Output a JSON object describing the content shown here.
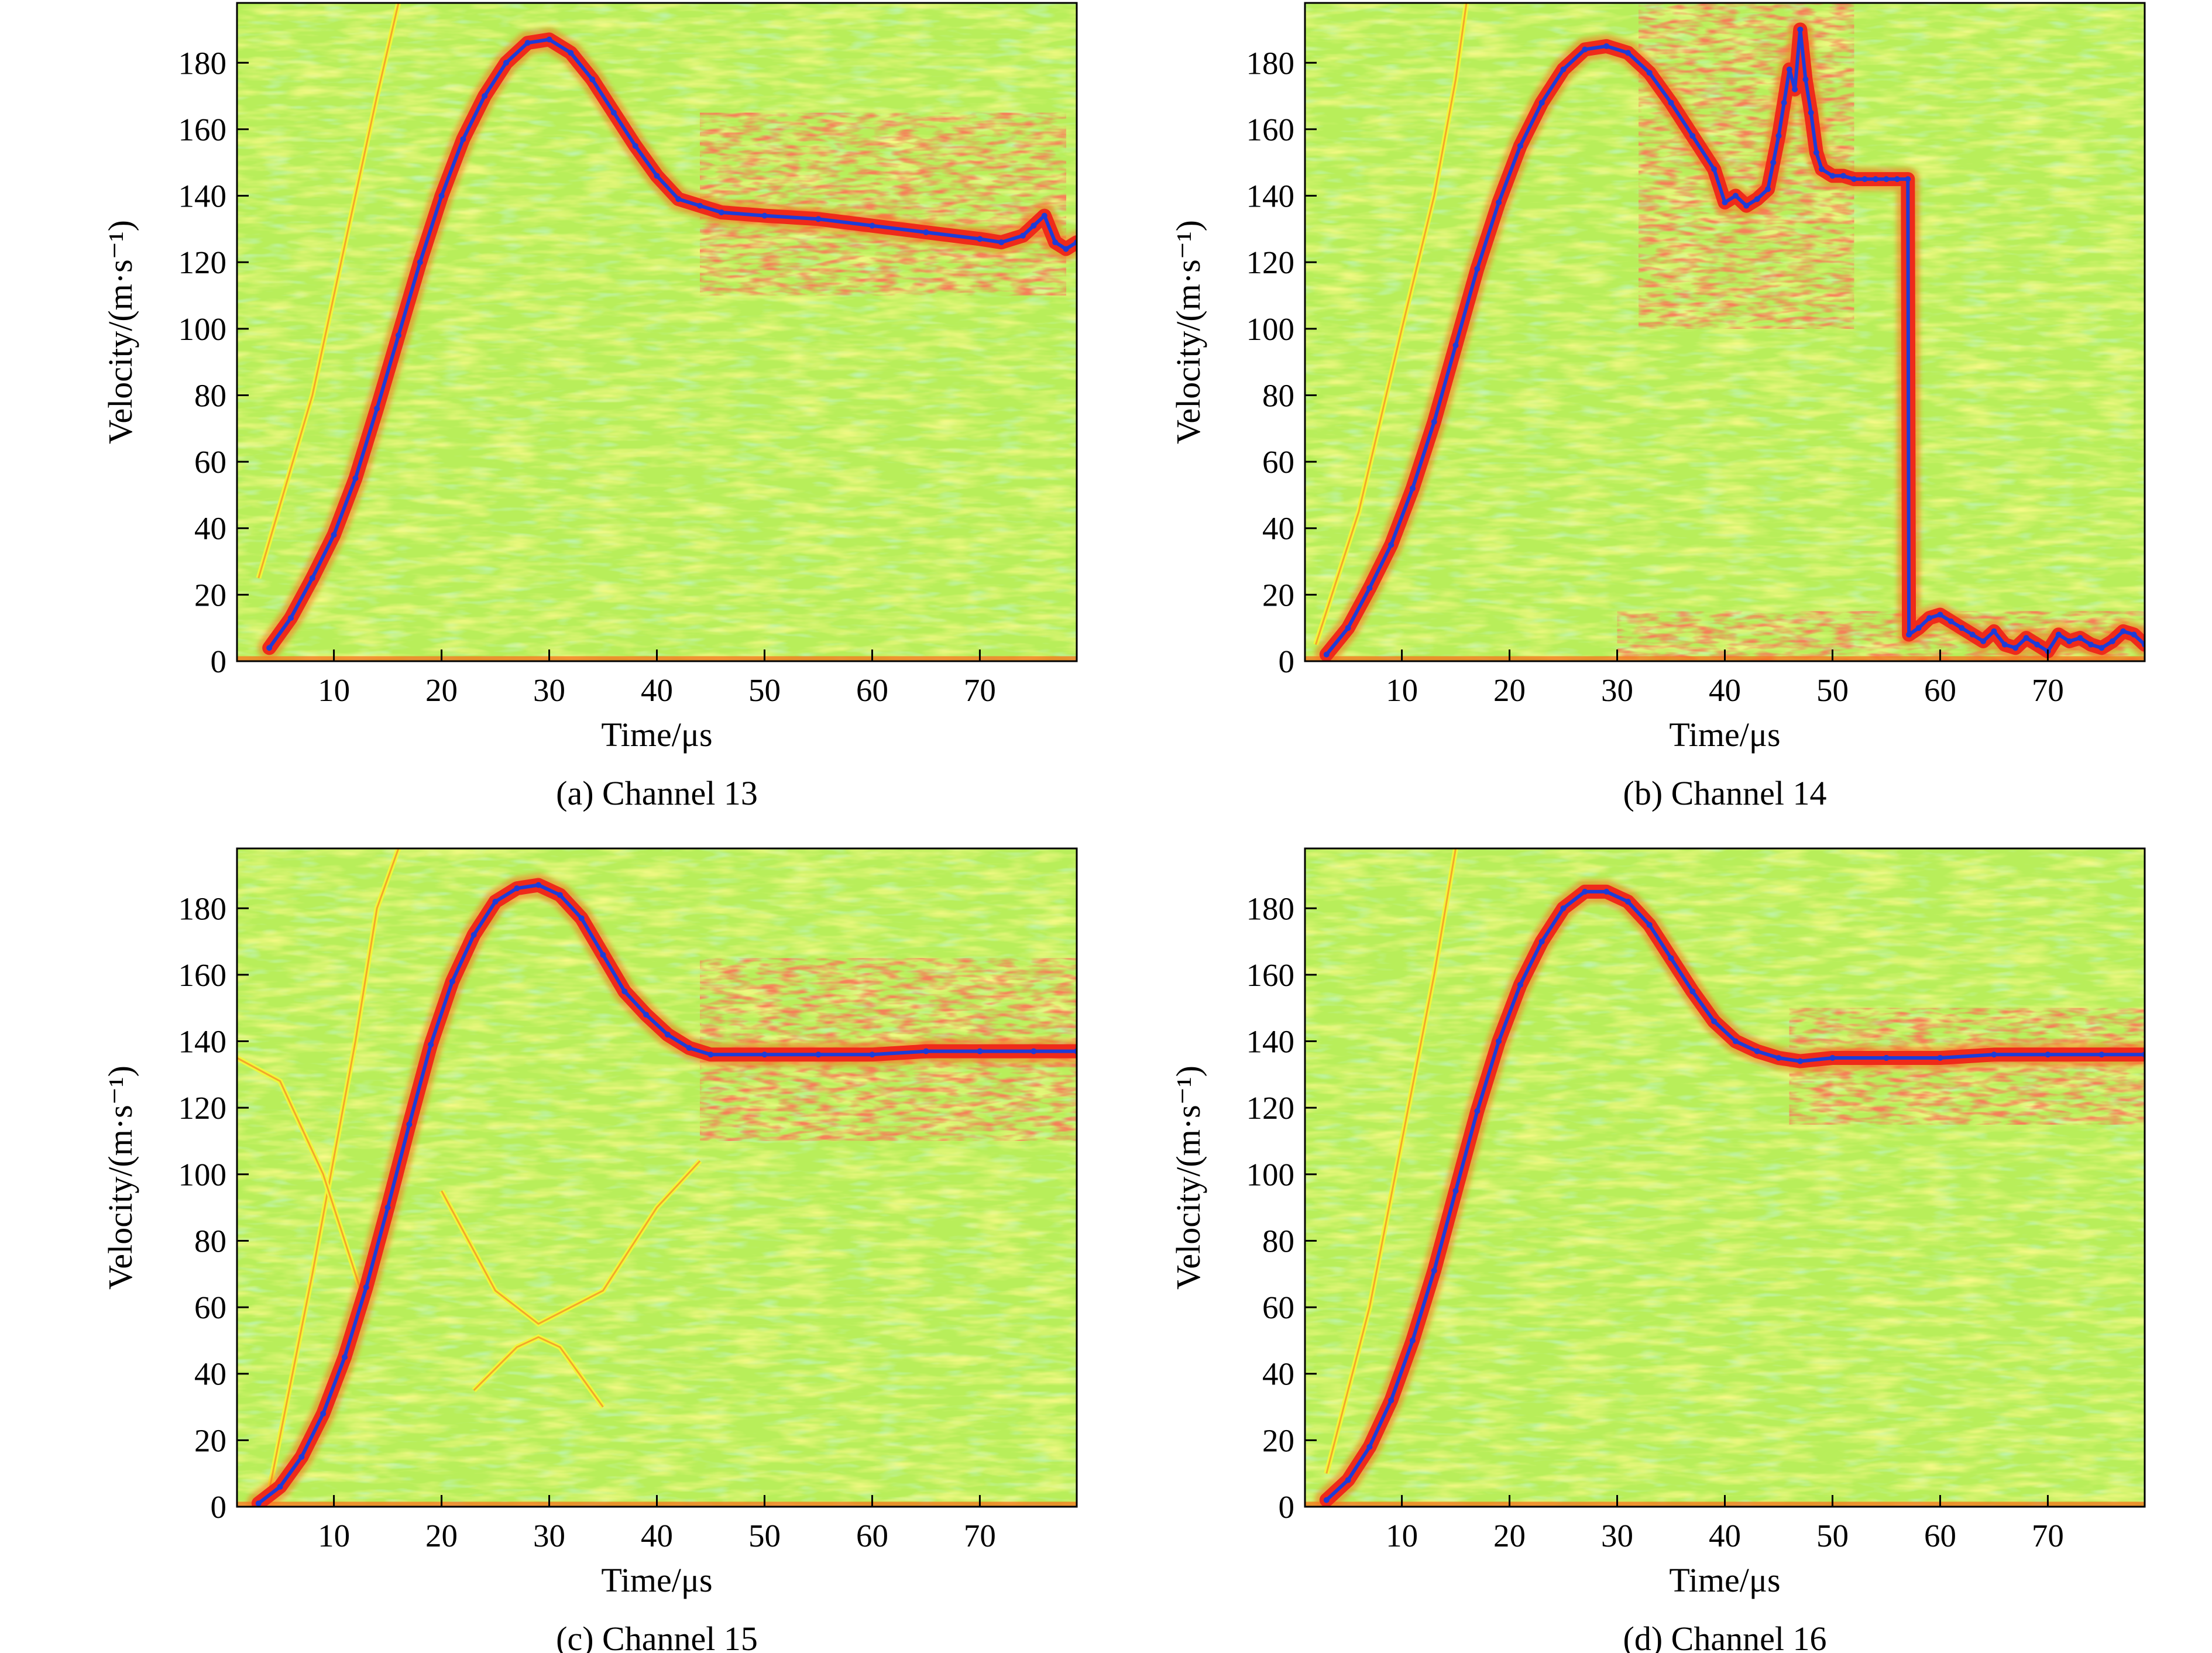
{
  "figure": {
    "colors": {
      "background_green": "#b8ee5a",
      "noise_yellow": "#f2f53a",
      "noise_cyan": "#8ff0b8",
      "signal_red": "#ef2a1a",
      "signal_orange": "#f7741c",
      "trace_blue": "#1d3cd8"
    }
  },
  "chart_data": [
    {
      "type": "heatmap",
      "caption": "(a) Channel 13",
      "xlabel": "Time/μs",
      "ylabel": "Velocity/(m·s⁻¹)",
      "xlim": [
        1,
        79
      ],
      "ylim": [
        0,
        198
      ],
      "xticks": [
        10,
        20,
        30,
        40,
        50,
        60,
        70
      ],
      "yticks": [
        0,
        20,
        40,
        60,
        80,
        100,
        120,
        140,
        160,
        180
      ],
      "extracted_velocity": {
        "t": [
          4,
          6,
          8,
          10,
          12,
          14,
          16,
          18,
          20,
          22,
          24,
          26,
          28,
          30,
          32,
          34,
          36,
          38,
          40,
          42,
          44,
          46,
          50,
          55,
          60,
          65,
          70,
          72,
          74,
          75,
          76,
          77,
          78,
          79
        ],
        "v": [
          4,
          13,
          25,
          38,
          55,
          76,
          98,
          120,
          140,
          157,
          170,
          180,
          186,
          187,
          183,
          175,
          165,
          155,
          146,
          139,
          137,
          135,
          134,
          133,
          131,
          129,
          127,
          126,
          128,
          131,
          134,
          126,
          124,
          126
        ]
      },
      "side_lines": [
        {
          "t": [
            3,
            8,
            12,
            14,
            16
          ],
          "v": [
            25,
            80,
            140,
            170,
            198
          ]
        }
      ],
      "scatter_regions": [
        {
          "t": [
            44,
            78
          ],
          "v": [
            110,
            165
          ]
        }
      ]
    },
    {
      "type": "heatmap",
      "caption": "(b) Channel 14",
      "xlabel": "Time/μs",
      "ylabel": "Velocity/(m·s⁻¹)",
      "xlim": [
        1,
        79
      ],
      "ylim": [
        0,
        198
      ],
      "xticks": [
        10,
        20,
        30,
        40,
        50,
        60,
        70
      ],
      "yticks": [
        0,
        20,
        40,
        60,
        80,
        100,
        120,
        140,
        160,
        180
      ],
      "extracted_velocity": {
        "t": [
          3,
          5,
          7,
          9,
          11,
          13,
          15,
          17,
          19,
          21,
          23,
          25,
          27,
          29,
          31,
          33,
          35,
          37,
          39,
          40,
          41,
          42,
          43,
          44,
          44.5,
          45,
          45.5,
          46,
          46.5,
          47,
          47.5,
          48,
          48.5,
          49,
          50,
          51,
          52,
          53,
          54,
          55,
          56,
          57,
          57.1,
          58,
          59,
          60,
          61,
          62,
          63,
          64,
          65,
          66,
          67,
          68,
          69,
          70,
          71,
          72,
          73,
          74,
          75,
          76,
          77,
          78,
          79
        ],
        "v": [
          2,
          10,
          22,
          35,
          52,
          72,
          95,
          118,
          138,
          155,
          168,
          178,
          184,
          185,
          183,
          177,
          168,
          158,
          148,
          138,
          140,
          137,
          139,
          142,
          150,
          158,
          168,
          178,
          172,
          190,
          175,
          165,
          153,
          148,
          146,
          146,
          145,
          145,
          145,
          145,
          145,
          145,
          8,
          10,
          13,
          14,
          12,
          10,
          8,
          6,
          9,
          5,
          4,
          7,
          5,
          3,
          8,
          6,
          7,
          5,
          4,
          6,
          9,
          8,
          5
        ]
      },
      "side_lines": [
        {
          "t": [
            2,
            6,
            10,
            13,
            15,
            16
          ],
          "v": [
            5,
            45,
            100,
            140,
            175,
            198
          ]
        }
      ],
      "scatter_regions": [
        {
          "t": [
            32,
            52
          ],
          "v": [
            100,
            198
          ]
        },
        {
          "t": [
            30,
            80
          ],
          "v": [
            0,
            15
          ]
        }
      ]
    },
    {
      "type": "heatmap",
      "caption": "(c) Channel 15",
      "xlabel": "Time/μs",
      "ylabel": "Velocity/(m·s⁻¹)",
      "xlim": [
        1,
        79
      ],
      "ylim": [
        0,
        198
      ],
      "xticks": [
        10,
        20,
        30,
        40,
        50,
        60,
        70
      ],
      "yticks": [
        0,
        20,
        40,
        60,
        80,
        100,
        120,
        140,
        160,
        180
      ],
      "extracted_velocity": {
        "t": [
          3,
          5,
          7,
          9,
          11,
          13,
          15,
          17,
          19,
          21,
          23,
          25,
          27,
          29,
          31,
          33,
          35,
          37,
          39,
          41,
          43,
          45,
          50,
          55,
          60,
          65,
          70,
          75,
          79
        ],
        "v": [
          1,
          6,
          15,
          28,
          45,
          66,
          90,
          115,
          139,
          158,
          172,
          182,
          186,
          187,
          184,
          177,
          166,
          155,
          148,
          142,
          138,
          136,
          136,
          136,
          136,
          137,
          137,
          137,
          137
        ]
      },
      "side_lines": [
        {
          "t": [
            4,
            8,
            12,
            14,
            16
          ],
          "v": [
            5,
            70,
            140,
            180,
            198
          ]
        },
        {
          "t": [
            1,
            5,
            9,
            13
          ],
          "v": [
            135,
            128,
            100,
            60
          ]
        },
        {
          "t": [
            20,
            25,
            29,
            35,
            40,
            44
          ],
          "v": [
            95,
            65,
            55,
            65,
            90,
            104
          ]
        },
        {
          "t": [
            23,
            27,
            29,
            31,
            35
          ],
          "v": [
            35,
            48,
            51,
            48,
            30
          ]
        }
      ],
      "scatter_regions": [
        {
          "t": [
            44,
            79
          ],
          "v": [
            110,
            165
          ]
        }
      ]
    },
    {
      "type": "heatmap",
      "caption": "(d) Channel 16",
      "xlabel": "Time/μs",
      "ylabel": "Velocity/(m·s⁻¹)",
      "xlim": [
        1,
        79
      ],
      "ylim": [
        0,
        198
      ],
      "xticks": [
        10,
        20,
        30,
        40,
        50,
        60,
        70
      ],
      "yticks": [
        0,
        20,
        40,
        60,
        80,
        100,
        120,
        140,
        160,
        180
      ],
      "extracted_velocity": {
        "t": [
          3,
          5,
          7,
          9,
          11,
          13,
          15,
          17,
          19,
          21,
          23,
          25,
          27,
          29,
          31,
          33,
          35,
          37,
          39,
          41,
          43,
          45,
          47,
          50,
          55,
          60,
          65,
          70,
          75,
          79
        ],
        "v": [
          2,
          8,
          18,
          32,
          50,
          71,
          95,
          119,
          140,
          157,
          170,
          180,
          185,
          185,
          182,
          175,
          165,
          155,
          146,
          140,
          137,
          135,
          134,
          135,
          135,
          135,
          136,
          136,
          136,
          136
        ]
      },
      "side_lines": [
        {
          "t": [
            3,
            7,
            10,
            13,
            15
          ],
          "v": [
            10,
            60,
            110,
            160,
            198
          ]
        }
      ],
      "scatter_regions": [
        {
          "t": [
            46,
            79
          ],
          "v": [
            115,
            150
          ]
        }
      ]
    }
  ]
}
